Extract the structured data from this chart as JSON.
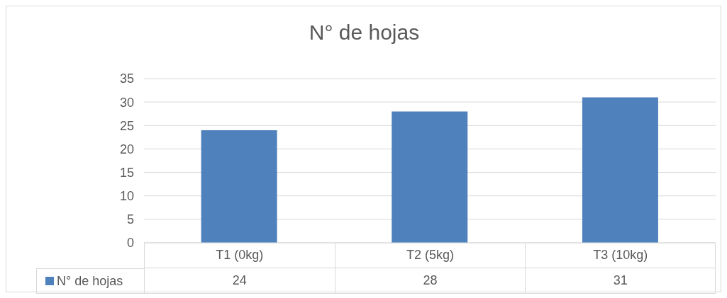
{
  "chart_data": {
    "type": "bar",
    "title": "N° de hojas",
    "categories": [
      "T1 (0kg)",
      "T2 (5kg)",
      "T3 (10kg)"
    ],
    "series": [
      {
        "name": "N° de hojas",
        "color": "#4f81bd",
        "values": [
          24,
          28,
          31
        ]
      }
    ],
    "ylim": [
      0,
      35
    ],
    "yticks": [
      0,
      5,
      10,
      15,
      20,
      25,
      30,
      35
    ],
    "grid": "y",
    "legend": "bottom",
    "data_labels": true
  }
}
